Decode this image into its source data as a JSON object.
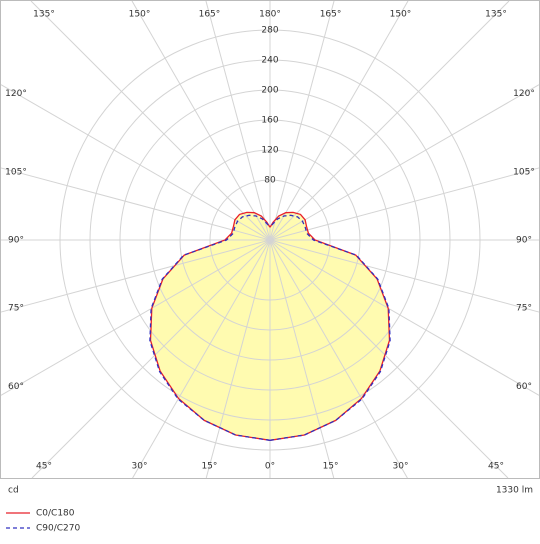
{
  "chart_data": {
    "type": "polar",
    "unit": "cd",
    "flux": "1330 lm",
    "rlim": [
      0,
      280
    ],
    "rticks": [
      80,
      120,
      160,
      200,
      240,
      280
    ],
    "angle_ticks": [
      {
        "value": 0,
        "label": "0°"
      },
      {
        "value": 15,
        "label": "15°"
      },
      {
        "value": 30,
        "label": "30°"
      },
      {
        "value": 45,
        "label": "45°"
      },
      {
        "value": 60,
        "label": "60°"
      },
      {
        "value": 75,
        "label": "75°"
      },
      {
        "value": 90,
        "label": "90°"
      },
      {
        "value": 105,
        "label": "105°"
      },
      {
        "value": 120,
        "label": "120°"
      },
      {
        "value": 135,
        "label": "135°"
      },
      {
        "value": 150,
        "label": "150°"
      },
      {
        "value": 165,
        "label": "165°"
      },
      {
        "value": 180,
        "label": "180°"
      }
    ],
    "x": [
      0,
      10,
      20,
      30,
      40,
      50,
      60,
      70,
      80,
      90,
      100,
      110,
      120,
      130,
      140,
      150,
      160,
      170,
      180
    ],
    "fill": "#fffbb0",
    "series": [
      {
        "name": "C0/C180",
        "color": "#e8202a",
        "dash": false,
        "values": [
          267,
          264,
          256,
          244,
          228,
          208,
          182,
          152,
          116,
          60,
          52,
          52,
          54,
          53,
          48,
          42,
          34,
          24,
          17
        ]
      },
      {
        "name": "C90/C270",
        "color": "#3030c0",
        "dash": true,
        "values": [
          267,
          264,
          256,
          245,
          229,
          209,
          183,
          153,
          117,
          58,
          50,
          50,
          50,
          48,
          43,
          37,
          30,
          22,
          17
        ]
      }
    ]
  }
}
